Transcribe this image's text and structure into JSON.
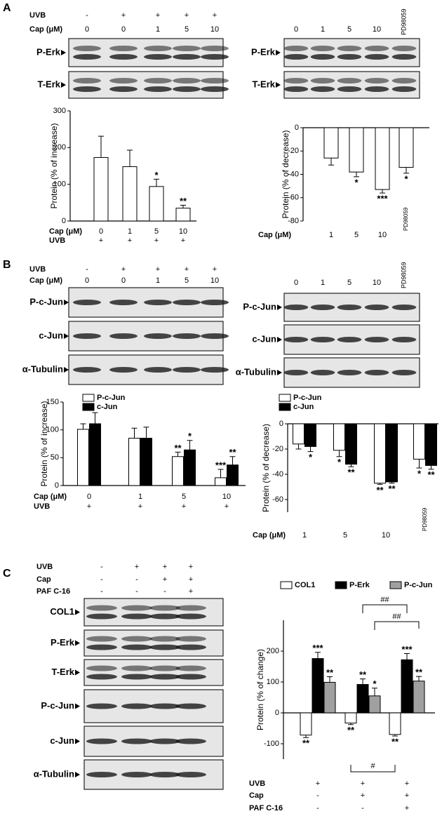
{
  "panel_labels": [
    "A",
    "B",
    "C"
  ],
  "blots": [
    {
      "header": [
        {
          "label": "UVB",
          "values": [
            "-",
            "+",
            "+",
            "+",
            "+"
          ]
        },
        {
          "label": "Cap (μM)",
          "values": [
            "0",
            "0",
            "1",
            "5",
            "10"
          ]
        }
      ],
      "bands": [
        "P-Erk",
        "T-Erk"
      ]
    },
    {
      "header": [
        {
          "values": [
            "0",
            "1",
            "5",
            "10",
            "PD98059"
          ]
        }
      ],
      "bands": [
        "P-Erk",
        "T-Erk"
      ]
    },
    {
      "header": [
        {
          "label": "UVB",
          "values": [
            "-",
            "+",
            "+",
            "+",
            "+"
          ]
        },
        {
          "label": "Cap (μM)",
          "values": [
            "0",
            "0",
            "1",
            "5",
            "10"
          ]
        }
      ],
      "bands": [
        "P-c-Jun",
        "c-Jun",
        "α-Tubulin"
      ]
    },
    {
      "header": [
        {
          "values": [
            "0",
            "1",
            "5",
            "10",
            "PD98059"
          ]
        }
      ],
      "bands": [
        "P-c-Jun",
        "c-Jun",
        "α-Tubulin"
      ]
    },
    {
      "header": [
        {
          "label": "UVB",
          "values": [
            "-",
            "+",
            "+",
            "+"
          ]
        },
        {
          "label": "Cap",
          "values": [
            "-",
            "-",
            "+",
            "+"
          ]
        },
        {
          "label": "PAF C-16",
          "values": [
            "-",
            "-",
            "-",
            "+"
          ]
        }
      ],
      "bands": [
        "COL1",
        "P-Erk",
        "T-Erk",
        "P-c-Jun",
        "c-Jun",
        "α-Tubulin"
      ]
    }
  ],
  "chart_data": [
    {
      "type": "bar",
      "ylabel": "Protein (% of increase)",
      "category_rows": [
        {
          "label": "Cap (μM)",
          "values": [
            "0",
            "1",
            "5",
            "10"
          ]
        },
        {
          "label": "UVB",
          "values": [
            "+",
            "+",
            "+",
            "+"
          ]
        }
      ],
      "values": [
        173,
        148,
        94,
        35
      ],
      "errors": [
        58,
        45,
        20,
        8
      ],
      "annotations": [
        null,
        null,
        "*",
        "**"
      ],
      "color": "#ffffff",
      "ylim": [
        0,
        300
      ],
      "yticks": [
        0,
        100,
        200,
        300
      ]
    },
    {
      "type": "bar",
      "ylabel": "Protein (% of decrease)",
      "category_rows": [
        {
          "label": "Cap (μM)",
          "values": [
            "1",
            "5",
            "10",
            "PD98059"
          ]
        }
      ],
      "values": [
        -26,
        -38,
        -53,
        -34
      ],
      "errors": [
        6,
        4,
        3,
        5
      ],
      "annotations": [
        null,
        "*",
        "***",
        "*"
      ],
      "color": "#ffffff",
      "ylim": [
        -80,
        0
      ],
      "yticks": [
        -80,
        -60,
        -40,
        -20,
        0
      ]
    },
    {
      "type": "grouped_bar",
      "ylabel": "Protein (% of increase)",
      "category_rows": [
        {
          "label": "Cap (μM)",
          "values": [
            "0",
            "1",
            "5",
            "10"
          ]
        },
        {
          "label": "UVB",
          "values": [
            "+",
            "+",
            "+",
            "+"
          ]
        }
      ],
      "series": [
        {
          "name": "P-c-Jun",
          "color": "#ffffff",
          "values": [
            101,
            85,
            52,
            14
          ],
          "errors": [
            10,
            18,
            8,
            15
          ],
          "annotations": [
            null,
            null,
            "**",
            "***"
          ]
        },
        {
          "name": "c-Jun",
          "color": "#000000",
          "values": [
            111,
            85,
            64,
            37
          ],
          "errors": [
            20,
            20,
            17,
            15
          ],
          "annotations": [
            null,
            null,
            "*",
            "**"
          ]
        }
      ],
      "ylim": [
        0,
        150
      ],
      "yticks": [
        0,
        50,
        100,
        150
      ]
    },
    {
      "type": "grouped_bar",
      "ylabel": "Protein (% of decrease)",
      "category_rows": [
        {
          "label": "Cap (μM)",
          "values": [
            "1",
            "5",
            "10",
            "PD98059"
          ]
        }
      ],
      "series": [
        {
          "name": "P-c-Jun",
          "color": "#ffffff",
          "values": [
            -16,
            -21,
            -47,
            -28
          ],
          "errors": [
            4,
            5,
            1,
            7
          ],
          "annotations": [
            null,
            "*",
            "**",
            "*"
          ]
        },
        {
          "name": "c-Jun",
          "color": "#000000",
          "values": [
            -18,
            -32,
            -46,
            -33
          ],
          "errors": [
            4,
            2,
            1,
            3
          ],
          "annotations": [
            "*",
            "**",
            "**",
            "**"
          ]
        }
      ],
      "ylim": [
        -70,
        0
      ],
      "yticks": [
        -60,
        -40,
        -20,
        0
      ]
    },
    {
      "type": "grouped_bar",
      "ylabel": "Protein (% of change)",
      "category_rows": [
        {
          "label": "UVB",
          "values": [
            "+",
            "+",
            "+"
          ]
        },
        {
          "label": "Cap",
          "values": [
            "-",
            "+",
            "+"
          ]
        },
        {
          "label": "PAF C-16",
          "values": [
            "-",
            "-",
            "+"
          ]
        }
      ],
      "series": [
        {
          "name": "COL1",
          "color": "#ffffff",
          "values": [
            -72,
            -33,
            -70
          ],
          "errors": [
            8,
            5,
            5
          ],
          "annotations": [
            "**",
            "**",
            "**"
          ]
        },
        {
          "name": "P-Erk",
          "color": "#000000",
          "values": [
            176,
            92,
            172
          ],
          "errors": [
            20,
            18,
            20
          ],
          "annotations": [
            "***",
            "**",
            "***"
          ]
        },
        {
          "name": "P-c-Jun",
          "color": "#a0a0a0",
          "values": [
            99,
            55,
            103
          ],
          "errors": [
            18,
            25,
            15
          ],
          "annotations": [
            "**",
            "*",
            "**"
          ]
        }
      ],
      "brackets": [
        "##",
        "##",
        "#"
      ],
      "ylim": [
        -150,
        300
      ],
      "yticks": [
        -100,
        0,
        100,
        200
      ]
    }
  ]
}
